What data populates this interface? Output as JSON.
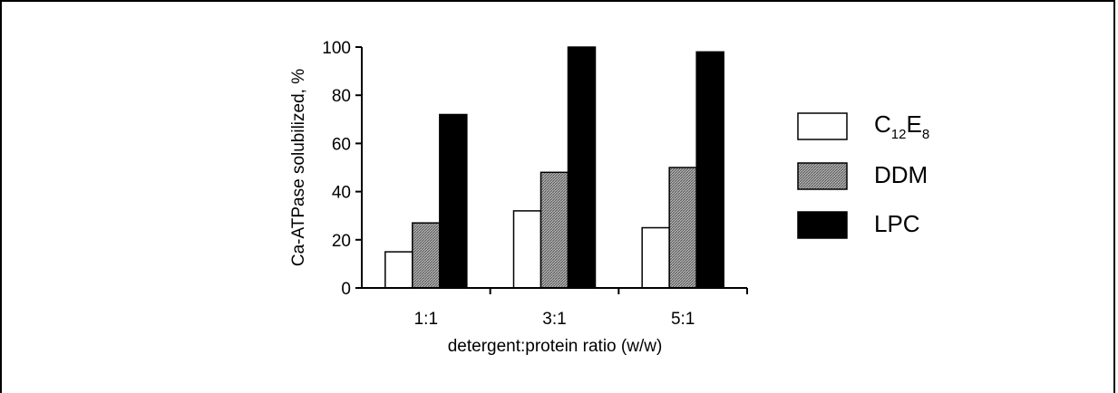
{
  "chart_data": {
    "type": "bar",
    "title": "",
    "xlabel": "detergent:protein ratio (w/w)",
    "ylabel": "Ca-ATPase solubilized, %",
    "categories": [
      "1:1",
      "3:1",
      "5:1"
    ],
    "ylim": [
      0,
      100
    ],
    "yticks": [
      "0",
      "20",
      "40",
      "60",
      "80",
      "100"
    ],
    "grid": false,
    "legend_position": "right",
    "series": [
      {
        "name": "C12E8",
        "name_main": "C",
        "name_sub1": "12",
        "name_mid": "E",
        "name_sub2": "8",
        "values": [
          15,
          32,
          25
        ],
        "color": "#ffffff"
      },
      {
        "name": "DDM",
        "values": [
          27,
          48,
          50
        ],
        "color": "#8c8c8c"
      },
      {
        "name": "LPC",
        "values": [
          72,
          100,
          98
        ],
        "color": "#000000"
      }
    ]
  }
}
